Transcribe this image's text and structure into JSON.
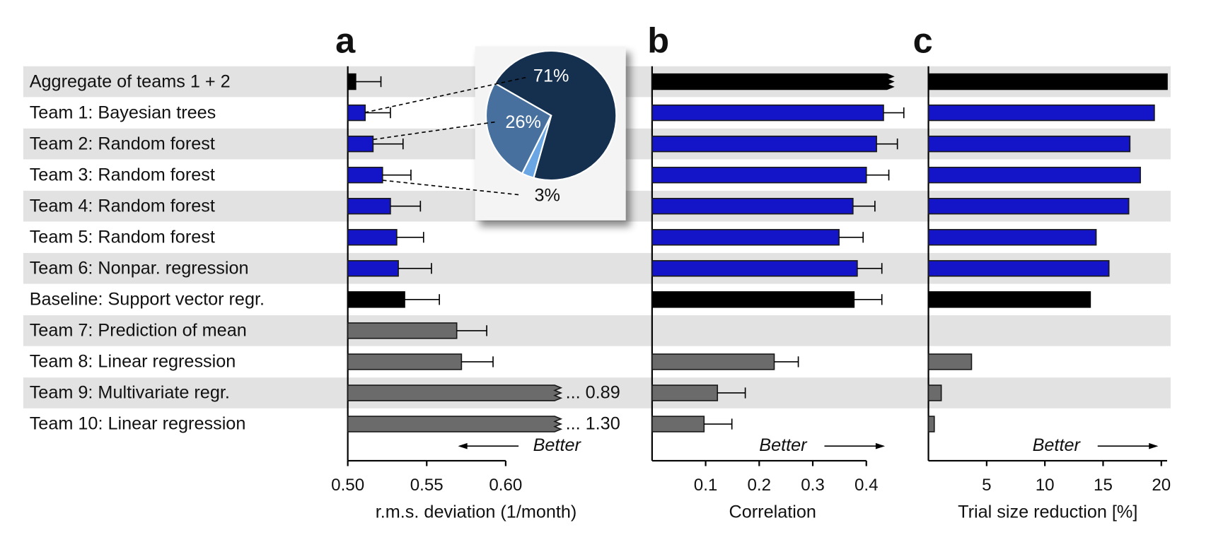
{
  "chart_data": [
    {
      "type": "bar",
      "title": "a",
      "categories": [
        "Aggregate of teams 1 + 2",
        "Team 1: Bayesian trees",
        "Team 2: Random forest",
        "Team 3: Random forest",
        "Team 4: Random forest",
        "Team 5: Random forest",
        "Team 6: Nonpar. regression",
        "Baseline: Support vector regr.",
        "Team 7: Prediction of mean",
        "Team 8: Linear regression",
        "Team 9: Multivariate regr.",
        "Team 10: Linear regression"
      ],
      "values": [
        0.505,
        0.511,
        0.516,
        0.522,
        0.527,
        0.531,
        0.532,
        0.536,
        0.569,
        0.572,
        0.89,
        1.3
      ],
      "errors": [
        0.016,
        0.016,
        0.019,
        0.018,
        0.019,
        0.017,
        0.021,
        0.022,
        0.019,
        0.02,
        null,
        null
      ],
      "value_labels": [
        null,
        null,
        null,
        null,
        null,
        null,
        null,
        null,
        null,
        null,
        "... 0.89",
        "... 1.30"
      ],
      "colors": [
        "#000000",
        "#1414c8",
        "#1414c8",
        "#1414c8",
        "#1414c8",
        "#1414c8",
        "#1414c8",
        "#000000",
        "#6b6b6b",
        "#6b6b6b",
        "#6b6b6b",
        "#6b6b6b"
      ],
      "xlim": [
        0.5,
        0.635
      ],
      "xticks": [
        {
          "value": 0.5,
          "label": "0.50"
        },
        {
          "value": 0.55,
          "label": "0.55"
        },
        {
          "value": 0.6,
          "label": "0.60"
        }
      ],
      "xlabel": "r.m.s. deviation (1/month)",
      "annotation": "Better",
      "annotation_arrow": "left"
    },
    {
      "type": "pie",
      "values": [
        71,
        26,
        3
      ],
      "value_labels": [
        "71%",
        "26%",
        "3%"
      ],
      "colors": [
        "#15304f",
        "#47709f",
        "#6aa6e4"
      ]
    },
    {
      "type": "bar",
      "title": "b",
      "values": [
        0.451,
        0.432,
        0.419,
        0.4,
        0.375,
        0.349,
        0.383,
        0.377,
        0,
        0.228,
        0.122,
        0.097
      ],
      "errors": [
        0.036,
        0.038,
        0.039,
        0.042,
        0.041,
        0.045,
        0.046,
        0.052,
        null,
        0.045,
        0.052,
        0.052
      ],
      "colors": [
        "#000000",
        "#1414c8",
        "#1414c8",
        "#1414c8",
        "#1414c8",
        "#1414c8",
        "#1414c8",
        "#000000",
        "#000000",
        "#6b6b6b",
        "#6b6b6b",
        "#6b6b6b"
      ],
      "xlim": [
        0,
        0.45
      ],
      "xticks": [
        0.1,
        0.2,
        0.3,
        0.4
      ],
      "xlabel": "Correlation",
      "annotation": "Better",
      "annotation_arrow": "right"
    },
    {
      "type": "bar",
      "title": "c",
      "values": [
        20.5,
        19.4,
        17.3,
        18.2,
        17.2,
        14.4,
        15.5,
        13.9,
        0,
        3.7,
        1.1,
        0.5
      ],
      "colors": [
        "#000000",
        "#1414c8",
        "#1414c8",
        "#1414c8",
        "#1414c8",
        "#1414c8",
        "#1414c8",
        "#000000",
        "#000000",
        "#6b6b6b",
        "#6b6b6b",
        "#6b6b6b"
      ],
      "xlim": [
        0,
        20.5
      ],
      "xticks": [
        5,
        10,
        15,
        20
      ],
      "xlabel": "Trial size reduction [%]",
      "annotation": "Better",
      "annotation_arrow": "right"
    }
  ]
}
